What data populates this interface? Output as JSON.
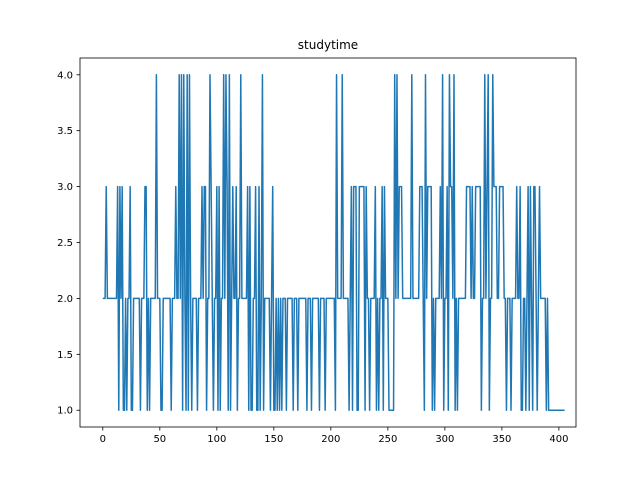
{
  "chart_data": {
    "type": "line",
    "title": "studytime",
    "xlabel": "",
    "ylabel": "",
    "xlim": [
      -20,
      415
    ],
    "ylim": [
      0.85,
      4.15
    ],
    "xticks": [
      0,
      50,
      100,
      150,
      200,
      250,
      300,
      350,
      400
    ],
    "yticks": [
      1.0,
      1.5,
      2.0,
      2.5,
      3.0,
      3.5,
      4.0
    ],
    "xtick_labels": [
      "0",
      "50",
      "100",
      "150",
      "200",
      "250",
      "300",
      "350",
      "400"
    ],
    "ytick_labels": [
      "1.0",
      "1.5",
      "2.0",
      "2.5",
      "3.0",
      "3.5",
      "4.0"
    ],
    "grid": false,
    "color": "#1f77b4",
    "series": [
      {
        "values": [
          2,
          2,
          2,
          3,
          2,
          2,
          2,
          2,
          2,
          2,
          2,
          2,
          2,
          3,
          1,
          3,
          2,
          3,
          1,
          1,
          2,
          1,
          2,
          2,
          3,
          1,
          1,
          2,
          2,
          2,
          2,
          2,
          2,
          1,
          2,
          2,
          2,
          3,
          3,
          1,
          2,
          1,
          2,
          2,
          2,
          2,
          2,
          4,
          2,
          2,
          2,
          1,
          1,
          2,
          2,
          2,
          2,
          2,
          2,
          2,
          1,
          2,
          2,
          2,
          3,
          2,
          2,
          4,
          2,
          4,
          1,
          4,
          2,
          1,
          4,
          1,
          4,
          2,
          1,
          2,
          2,
          2,
          2,
          1,
          2,
          2,
          2,
          3,
          2,
          3,
          3,
          1,
          2,
          2,
          4,
          3,
          2,
          1,
          2,
          2,
          3,
          1,
          3,
          1,
          2,
          2,
          4,
          2,
          4,
          3,
          1,
          4,
          1,
          2,
          3,
          2,
          2,
          3,
          1,
          2,
          2,
          4,
          2,
          2,
          2,
          2,
          2,
          3,
          1,
          3,
          1,
          1,
          2,
          2,
          3,
          1,
          1,
          3,
          1,
          2,
          4,
          1,
          2,
          2,
          2,
          2,
          2,
          1,
          2,
          3,
          1,
          1,
          2,
          1,
          2,
          1,
          2,
          1,
          2,
          2,
          2,
          1,
          2,
          2,
          2,
          2,
          2,
          1,
          2,
          2,
          2,
          1,
          2,
          2,
          2,
          2,
          2,
          2,
          2,
          1,
          2,
          2,
          2,
          1,
          2,
          2,
          2,
          2,
          2,
          2,
          1,
          2,
          2,
          2,
          2,
          1,
          2,
          2,
          2,
          2,
          2,
          2,
          2,
          2,
          1,
          4,
          2,
          2,
          2,
          2,
          4,
          2,
          2,
          2,
          2,
          2,
          1,
          2,
          3,
          1,
          3,
          3,
          3,
          1,
          1,
          3,
          3,
          3,
          3,
          3,
          1,
          3,
          2,
          2,
          1,
          2,
          2,
          2,
          2,
          3,
          1,
          2,
          1,
          2,
          2,
          3,
          1,
          3,
          2,
          2,
          2,
          1,
          1,
          1,
          1,
          1,
          4,
          2,
          4,
          2,
          3,
          3,
          3,
          2,
          2,
          2,
          2,
          2,
          2,
          2,
          2,
          4,
          2,
          2,
          2,
          2,
          2,
          2,
          3,
          3,
          3,
          2,
          1,
          4,
          2,
          3,
          3,
          3,
          3,
          1,
          2,
          1,
          2,
          2,
          2,
          2,
          3,
          2,
          4,
          1,
          2,
          2,
          3,
          1,
          4,
          3,
          3,
          2,
          4,
          1,
          2,
          1,
          2,
          2,
          2,
          2,
          2,
          2,
          2,
          3,
          3,
          3,
          3,
          2,
          3,
          2,
          2,
          3,
          3,
          3,
          3,
          3,
          1,
          2,
          2,
          4,
          2,
          3,
          4,
          1,
          2,
          2,
          4,
          3,
          3,
          3,
          2,
          2,
          3,
          3,
          3,
          3,
          2,
          2,
          1,
          2,
          2,
          2,
          1,
          2,
          2,
          2,
          2,
          3,
          2,
          2,
          3,
          1,
          1,
          2,
          2,
          1,
          2,
          3,
          1,
          3,
          2,
          1,
          3,
          3,
          2,
          1,
          2,
          3,
          2,
          2,
          2,
          2,
          2,
          1,
          2,
          1,
          1,
          1,
          1,
          1,
          1,
          1,
          1,
          1,
          1,
          1,
          1,
          1,
          1,
          1
        ]
      }
    ]
  }
}
